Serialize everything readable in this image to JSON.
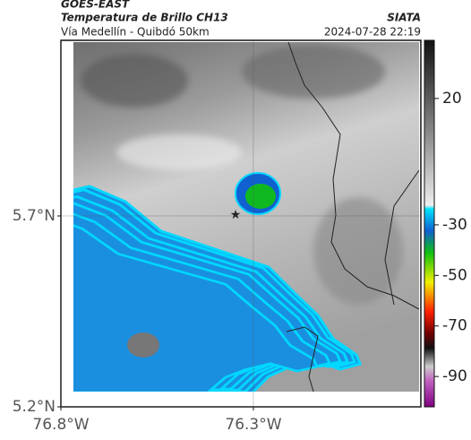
{
  "header": {
    "satellite": "GOES-EAST",
    "product": "Temperatura de Brillo CH13",
    "route": "Vía Medellín - Quibdó 50km",
    "source": "SIATA",
    "timestamp": "2024-07-28 22:19"
  },
  "map": {
    "xlim": [
      -76.8,
      -75.865
    ],
    "ylim": [
      5.2,
      6.16
    ],
    "xticks": [
      {
        "value": -76.8,
        "label": "76.8°W"
      },
      {
        "value": -76.3,
        "label": "76.3°W"
      }
    ],
    "yticks": [
      {
        "value": 5.2,
        "label": "5.2°N"
      },
      {
        "value": 5.7,
        "label": "5.7°N"
      }
    ]
  },
  "colorbar": {
    "lim": [
      -102,
      43
    ],
    "ticks": [
      20,
      -30,
      -50,
      -70,
      -90
    ]
  }
}
